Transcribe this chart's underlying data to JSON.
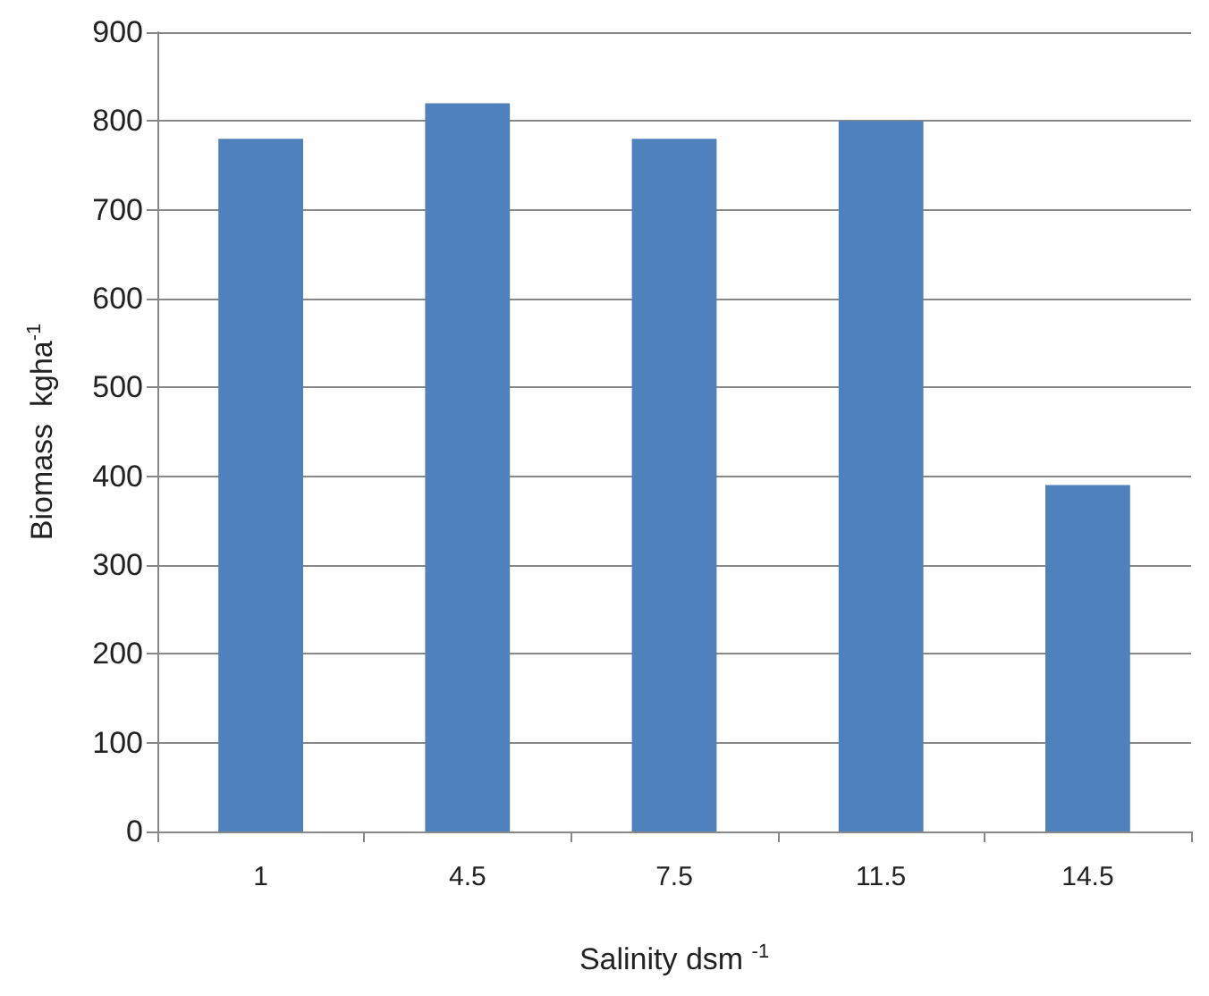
{
  "chart_data": {
    "type": "bar",
    "xlabel": "Salinity dsm $^{-1}$",
    "ylabel": "Biomass  kgha$^{-1}$",
    "categories": [
      "1",
      "4.5",
      "7.5",
      "11.5",
      "14.5"
    ],
    "values": [
      780,
      820,
      780,
      800,
      390
    ],
    "color": "#4f81bd",
    "ylim": [
      0,
      900
    ],
    "yticks": [
      0,
      100,
      200,
      300,
      400,
      500,
      600,
      700,
      800,
      900
    ],
    "grid": "y"
  }
}
